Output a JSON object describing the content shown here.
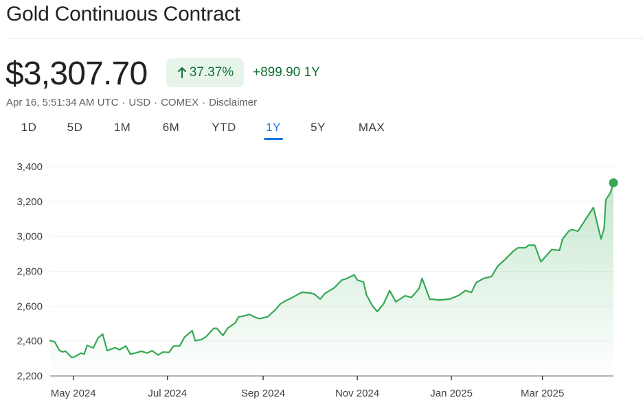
{
  "header": {
    "title": "Gold Continuous Contract",
    "price": "$3,307.70",
    "change_pct": "37.37%",
    "change_abs": "+899.90",
    "change_period": "1Y",
    "meta": {
      "timestamp": "Apr 16, 5:51:34 AM UTC",
      "currency": "USD",
      "exchange": "COMEX",
      "disclaimer": "Disclaimer"
    },
    "icons": {
      "change_arrow": "arrow-up-icon"
    }
  },
  "ranges": [
    {
      "label": "1D",
      "active": false
    },
    {
      "label": "5D",
      "active": false
    },
    {
      "label": "1M",
      "active": false
    },
    {
      "label": "6M",
      "active": false
    },
    {
      "label": "YTD",
      "active": false
    },
    {
      "label": "1Y",
      "active": true
    },
    {
      "label": "5Y",
      "active": false
    },
    {
      "label": "MAX",
      "active": false
    }
  ],
  "colors": {
    "line": "#34a853",
    "positive_text": "#137333",
    "positive_bg": "#e6f4ea",
    "active_tab": "#1a73e8",
    "grid": "#f1f3f4"
  },
  "chart_data": {
    "type": "area",
    "title": "",
    "xlabel": "",
    "ylabel": "",
    "ylim": [
      2200,
      3400
    ],
    "yticks": [
      2200,
      2400,
      2600,
      2800,
      3000,
      3200,
      3400
    ],
    "ytick_labels": [
      "2,200",
      "2,400",
      "2,600",
      "2,800",
      "3,000",
      "3,200",
      "3,400"
    ],
    "xlim": [
      "2024-04-16",
      "2025-04-16"
    ],
    "xticks": [
      {
        "date": "2024-05-01",
        "label": "May 2024"
      },
      {
        "date": "2024-07-01",
        "label": "Jul 2024"
      },
      {
        "date": "2024-09-01",
        "label": "Sep 2024"
      },
      {
        "date": "2024-11-01",
        "label": "Nov 2024"
      },
      {
        "date": "2025-01-01",
        "label": "Jan 2025"
      },
      {
        "date": "2025-03-01",
        "label": "Mar 2025"
      }
    ],
    "grid": true,
    "series": [
      {
        "x": [
          "2024-04-16",
          "2024-04-19",
          "2024-04-22",
          "2024-04-24",
          "2024-04-26",
          "2024-04-30",
          "2024-05-02",
          "2024-05-06",
          "2024-05-08",
          "2024-05-10",
          "2024-05-14",
          "2024-05-17",
          "2024-05-20",
          "2024-05-23",
          "2024-05-28",
          "2024-05-31",
          "2024-06-04",
          "2024-06-07",
          "2024-06-11",
          "2024-06-14",
          "2024-06-18",
          "2024-06-21",
          "2024-06-25",
          "2024-06-28",
          "2024-07-02",
          "2024-07-05",
          "2024-07-09",
          "2024-07-12",
          "2024-07-17",
          "2024-07-19",
          "2024-07-23",
          "2024-07-26",
          "2024-07-31",
          "2024-08-02",
          "2024-08-06",
          "2024-08-09",
          "2024-08-14",
          "2024-08-16",
          "2024-08-20",
          "2024-08-23",
          "2024-08-28",
          "2024-08-30",
          "2024-09-04",
          "2024-09-09",
          "2024-09-12",
          "2024-09-16",
          "2024-09-20",
          "2024-09-26",
          "2024-10-01",
          "2024-10-04",
          "2024-10-08",
          "2024-10-11",
          "2024-10-17",
          "2024-10-22",
          "2024-10-25",
          "2024-10-30",
          "2024-11-01",
          "2024-11-05",
          "2024-11-07",
          "2024-11-11",
          "2024-11-14",
          "2024-11-18",
          "2024-11-22",
          "2024-11-26",
          "2024-12-02",
          "2024-12-06",
          "2024-12-11",
          "2024-12-13",
          "2024-12-18",
          "2024-12-20",
          "2024-12-24",
          "2024-12-31",
          "2025-01-06",
          "2025-01-10",
          "2025-01-14",
          "2025-01-17",
          "2025-01-22",
          "2025-01-27",
          "2025-01-31",
          "2025-02-05",
          "2025-02-10",
          "2025-02-13",
          "2025-02-18",
          "2025-02-20",
          "2025-02-24",
          "2025-02-28",
          "2025-03-04",
          "2025-03-07",
          "2025-03-12",
          "2025-03-14",
          "2025-03-18",
          "2025-03-20",
          "2025-03-24",
          "2025-03-28",
          "2025-04-01",
          "2025-04-03",
          "2025-04-07",
          "2025-04-08",
          "2025-04-10",
          "2025-04-11",
          "2025-04-14",
          "2025-04-16"
        ],
        "values": [
          2403,
          2395,
          2346,
          2338,
          2342,
          2305,
          2310,
          2331,
          2325,
          2375,
          2361,
          2417,
          2440,
          2345,
          2362,
          2350,
          2372,
          2325,
          2333,
          2342,
          2331,
          2345,
          2320,
          2337,
          2335,
          2372,
          2372,
          2422,
          2460,
          2402,
          2409,
          2425,
          2473,
          2473,
          2432,
          2474,
          2505,
          2538,
          2545,
          2553,
          2532,
          2529,
          2540,
          2580,
          2612,
          2633,
          2650,
          2680,
          2676,
          2670,
          2641,
          2673,
          2705,
          2750,
          2758,
          2780,
          2750,
          2739,
          2665,
          2600,
          2570,
          2613,
          2690,
          2625,
          2660,
          2650,
          2700,
          2760,
          2640,
          2640,
          2635,
          2641,
          2663,
          2690,
          2679,
          2735,
          2760,
          2770,
          2830,
          2870,
          2915,
          2935,
          2935,
          2950,
          2950,
          2855,
          2895,
          2925,
          2920,
          2985,
          3030,
          3040,
          3030,
          3085,
          3140,
          3166,
          3020,
          2985,
          3050,
          3210,
          3250,
          3307.7
        ]
      }
    ],
    "last_point": {
      "x": "2025-04-16",
      "y": 3307.7
    }
  }
}
